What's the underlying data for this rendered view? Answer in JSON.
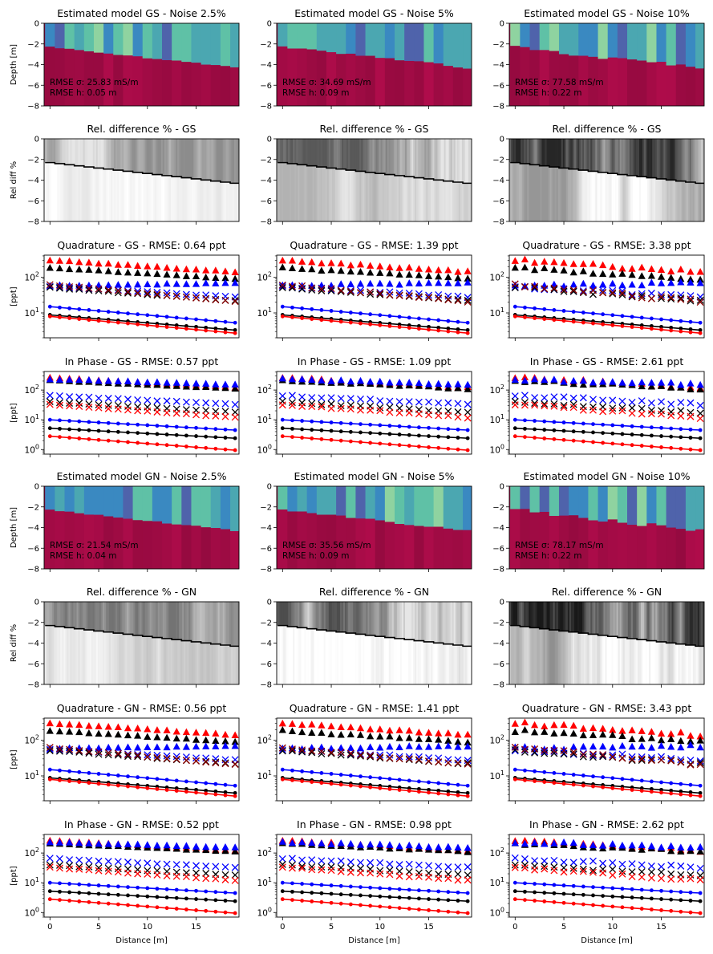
{
  "figure": {
    "noise_levels": [
      "2.5%",
      "5%",
      "10%"
    ],
    "x_axis_label": "Distance [m]",
    "x_ticks": [
      0,
      5,
      10,
      15
    ],
    "xlim": [
      -0.6,
      19.4
    ]
  },
  "colors": {
    "red": "#ff0000",
    "black": "#000000",
    "blue": "#0000ff",
    "dark_red": "#8b0000",
    "halfspace": "#a20b45",
    "cmap": [
      "#3a89c1",
      "#4ba7b1",
      "#5fc1a6",
      "#8fd3a0",
      "#4f63ab"
    ]
  },
  "chart_data": [
    {
      "type": "heatmap",
      "kind": "model",
      "method": "GS",
      "noise": "2.5%",
      "title": "Estimated model GS - Noise 2.5%",
      "ylabel": "Depth [m]",
      "ylim": [
        -8,
        0
      ],
      "yticks": [
        0,
        -2,
        -4,
        -6,
        -8
      ],
      "rmse_sigma": "RMSE σ: 25.83 mS/m",
      "rmse_h": "RMSE h: 0.05 m",
      "seed": 11,
      "hv": 0.2
    },
    {
      "type": "heatmap",
      "kind": "model",
      "method": "GS",
      "noise": "5%",
      "title": "Estimated model GS - Noise 5%",
      "ylabel": "",
      "ylim": [
        -8,
        0
      ],
      "yticks": [
        0,
        -2,
        -4,
        -6,
        -8
      ],
      "rmse_sigma": "RMSE σ: 34.69 mS/m",
      "rmse_h": "RMSE h: 0.09 m",
      "seed": 23,
      "hv": 0.35
    },
    {
      "type": "heatmap",
      "kind": "model",
      "method": "GS",
      "noise": "10%",
      "title": "Estimated model GS - Noise 10%",
      "ylabel": "",
      "ylim": [
        -8,
        0
      ],
      "yticks": [
        0,
        -2,
        -4,
        -6,
        -8
      ],
      "rmse_sigma": "RMSE σ: 77.58 mS/m",
      "rmse_h": "RMSE h: 0.22 m",
      "seed": 37,
      "hv": 0.7
    },
    {
      "type": "heatmap",
      "kind": "reldiff",
      "method": "GS",
      "title": "Rel. difference % - GS",
      "ylabel": "Rel diff %",
      "ylim": [
        -8,
        0
      ],
      "yticks": [
        0,
        -2,
        -4,
        -6,
        -8
      ],
      "seed": 41,
      "dark": 0.35
    },
    {
      "type": "heatmap",
      "kind": "reldiff",
      "method": "GS",
      "title": "Rel. difference % - GS",
      "ylabel": "",
      "ylim": [
        -8,
        0
      ],
      "yticks": [
        0,
        -2,
        -4,
        -6,
        -8
      ],
      "seed": 53,
      "dark": 0.55
    },
    {
      "type": "heatmap",
      "kind": "reldiff",
      "method": "GS",
      "title": "Rel. difference % - GS",
      "ylabel": "",
      "ylim": [
        -8,
        0
      ],
      "yticks": [
        0,
        -2,
        -4,
        -6,
        -8
      ],
      "seed": 67,
      "dark": 0.75
    },
    {
      "type": "scatter",
      "kind": "quad",
      "method": "GS",
      "title": "Quadrature - GS - RMSE: 0.64 ppt",
      "ylabel": "[ppt]",
      "yscale": "log",
      "ylim": [
        2,
        420
      ],
      "yticks": [
        10,
        100
      ],
      "noise": 0.025,
      "seed": 101
    },
    {
      "type": "scatter",
      "kind": "quad",
      "method": "GS",
      "title": "Quadrature - GS - RMSE: 1.39 ppt",
      "ylabel": "",
      "yscale": "log",
      "ylim": [
        2,
        420
      ],
      "yticks": [
        10,
        100
      ],
      "noise": 0.05,
      "seed": 103
    },
    {
      "type": "scatter",
      "kind": "quad",
      "method": "GS",
      "title": "Quadrature - GS - RMSE: 3.38 ppt",
      "ylabel": "",
      "yscale": "log",
      "ylim": [
        2,
        420
      ],
      "yticks": [
        10,
        100
      ],
      "noise": 0.1,
      "seed": 107
    },
    {
      "type": "scatter",
      "kind": "inph",
      "method": "GS",
      "title": "In Phase - GS - RMSE: 0.57 ppt",
      "ylabel": "[ppt]",
      "yscale": "log",
      "ylim": [
        0.7,
        420
      ],
      "yticks": [
        1,
        10,
        100
      ],
      "noise": 0.025,
      "seed": 109
    },
    {
      "type": "scatter",
      "kind": "inph",
      "method": "GS",
      "title": "In Phase - GS - RMSE: 1.09 ppt",
      "ylabel": "",
      "yscale": "log",
      "ylim": [
        0.7,
        420
      ],
      "yticks": [
        1,
        10,
        100
      ],
      "noise": 0.05,
      "seed": 113
    },
    {
      "type": "scatter",
      "kind": "inph",
      "method": "GS",
      "title": "In Phase - GS - RMSE: 2.61 ppt",
      "ylabel": "",
      "yscale": "log",
      "ylim": [
        0.7,
        420
      ],
      "yticks": [
        1,
        10,
        100
      ],
      "noise": 0.1,
      "seed": 127
    },
    {
      "type": "heatmap",
      "kind": "model",
      "method": "GN",
      "noise": "2.5%",
      "title": "Estimated model GN - Noise 2.5%",
      "ylabel": "Depth [m]",
      "ylim": [
        -8,
        0
      ],
      "yticks": [
        0,
        -2,
        -4,
        -6,
        -8
      ],
      "rmse_sigma": "RMSE σ: 21.54 mS/m",
      "rmse_h": "RMSE h: 0.04 m",
      "seed": 131,
      "hv": 0.2
    },
    {
      "type": "heatmap",
      "kind": "model",
      "method": "GN",
      "noise": "5%",
      "title": "Estimated model GN - Noise 5%",
      "ylabel": "",
      "ylim": [
        -8,
        0
      ],
      "yticks": [
        0,
        -2,
        -4,
        -6,
        -8
      ],
      "rmse_sigma": "RMSE σ: 35.56 mS/m",
      "rmse_h": "RMSE h: 0.09 m",
      "seed": 137,
      "hv": 0.35
    },
    {
      "type": "heatmap",
      "kind": "model",
      "method": "GN",
      "noise": "10%",
      "title": "Estimated model GN - Noise 10%",
      "ylabel": "",
      "ylim": [
        -8,
        0
      ],
      "yticks": [
        0,
        -2,
        -4,
        -6,
        -8
      ],
      "rmse_sigma": "RMSE σ: 78.17 mS/m",
      "rmse_h": "RMSE h: 0.22 m",
      "seed": 139,
      "hv": 0.7
    },
    {
      "type": "heatmap",
      "kind": "reldiff",
      "method": "GN",
      "title": "Rel. difference % - GN",
      "ylabel": "Rel diff %",
      "ylim": [
        -8,
        0
      ],
      "yticks": [
        0,
        -2,
        -4,
        -6,
        -8
      ],
      "seed": 149,
      "dark": 0.45
    },
    {
      "type": "heatmap",
      "kind": "reldiff",
      "method": "GN",
      "title": "Rel. difference % - GN",
      "ylabel": "",
      "ylim": [
        -8,
        0
      ],
      "yticks": [
        0,
        -2,
        -4,
        -6,
        -8
      ],
      "seed": 151,
      "dark": 0.6
    },
    {
      "type": "heatmap",
      "kind": "reldiff",
      "method": "GN",
      "title": "Rel. difference % - GN",
      "ylabel": "",
      "ylim": [
        -8,
        0
      ],
      "yticks": [
        0,
        -2,
        -4,
        -6,
        -8
      ],
      "seed": 157,
      "dark": 0.8
    },
    {
      "type": "scatter",
      "kind": "quad",
      "method": "GN",
      "title": "Quadrature - GN - RMSE: 0.56 ppt",
      "ylabel": "[ppt]",
      "yscale": "log",
      "ylim": [
        2,
        420
      ],
      "yticks": [
        10,
        100
      ],
      "noise": 0.025,
      "seed": 163
    },
    {
      "type": "scatter",
      "kind": "quad",
      "method": "GN",
      "title": "Quadrature - GN - RMSE: 1.41 ppt",
      "ylabel": "",
      "yscale": "log",
      "ylim": [
        2,
        420
      ],
      "yticks": [
        10,
        100
      ],
      "noise": 0.05,
      "seed": 167
    },
    {
      "type": "scatter",
      "kind": "quad",
      "method": "GN",
      "title": "Quadrature - GN - RMSE: 3.43 ppt",
      "ylabel": "",
      "yscale": "log",
      "ylim": [
        2,
        420
      ],
      "yticks": [
        10,
        100
      ],
      "noise": 0.1,
      "seed": 173
    },
    {
      "type": "scatter",
      "kind": "inph",
      "method": "GN",
      "title": "In Phase - GN - RMSE: 0.52 ppt",
      "ylabel": "[ppt]",
      "yscale": "log",
      "ylim": [
        0.7,
        420
      ],
      "yticks": [
        1,
        10,
        100
      ],
      "noise": 0.025,
      "seed": 179
    },
    {
      "type": "scatter",
      "kind": "inph",
      "method": "GN",
      "title": "In Phase - GN - RMSE: 0.98 ppt",
      "ylabel": "",
      "yscale": "log",
      "ylim": [
        0.7,
        420
      ],
      "yticks": [
        1,
        10,
        100
      ],
      "noise": 0.05,
      "seed": 181
    },
    {
      "type": "scatter",
      "kind": "inph",
      "method": "GN",
      "title": "In Phase - GN - RMSE: 2.62 ppt",
      "ylabel": "",
      "yscale": "log",
      "ylim": [
        0.7,
        420
      ],
      "yticks": [
        1,
        10,
        100
      ],
      "noise": 0.1,
      "seed": 191
    }
  ],
  "series": {
    "quad": [
      {
        "color": "red",
        "marker": "triangle",
        "y0": 300,
        "y1": 140,
        "line": false
      },
      {
        "color": "black",
        "marker": "triangle",
        "y0": 185,
        "y1": 90,
        "line": false
      },
      {
        "color": "blue",
        "marker": "triangle",
        "y0": 58,
        "y1": 68,
        "line": false
      },
      {
        "color": "blue",
        "marker": "x",
        "y0": 55,
        "y1": 28,
        "line": false
      },
      {
        "color": "black",
        "marker": "x",
        "y0": 52,
        "y1": 22,
        "line": false
      },
      {
        "color": "dark_red",
        "marker": "x",
        "y0": 62,
        "y1": 21,
        "line": false
      },
      {
        "color": "blue",
        "marker": "dot",
        "y0": 15,
        "y1": 5.3,
        "line": true
      },
      {
        "color": "black",
        "marker": "dot",
        "y0": 8.8,
        "y1": 3.3,
        "line": true
      },
      {
        "color": "red",
        "marker": "dot",
        "y0": 8.0,
        "y1": 2.7,
        "line": true
      }
    ],
    "inph": [
      {
        "color": "red",
        "marker": "triangle",
        "y0": 260,
        "y1": 120,
        "line": false
      },
      {
        "color": "black",
        "marker": "triangle",
        "y0": 210,
        "y1": 110,
        "line": false
      },
      {
        "color": "blue",
        "marker": "triangle",
        "y0": 230,
        "y1": 150,
        "line": false
      },
      {
        "color": "blue",
        "marker": "x",
        "y0": 65,
        "y1": 33,
        "line": false
      },
      {
        "color": "black",
        "marker": "x",
        "y0": 40,
        "y1": 18,
        "line": false
      },
      {
        "color": "red",
        "marker": "x",
        "y0": 33,
        "y1": 12,
        "line": false
      },
      {
        "color": "blue",
        "marker": "dot",
        "y0": 10,
        "y1": 4.5,
        "line": true
      },
      {
        "color": "black",
        "marker": "dot",
        "y0": 5.2,
        "y1": 2.4,
        "line": true
      },
      {
        "color": "red",
        "marker": "dot",
        "y0": 2.8,
        "y1": 0.95,
        "line": true
      }
    ]
  }
}
